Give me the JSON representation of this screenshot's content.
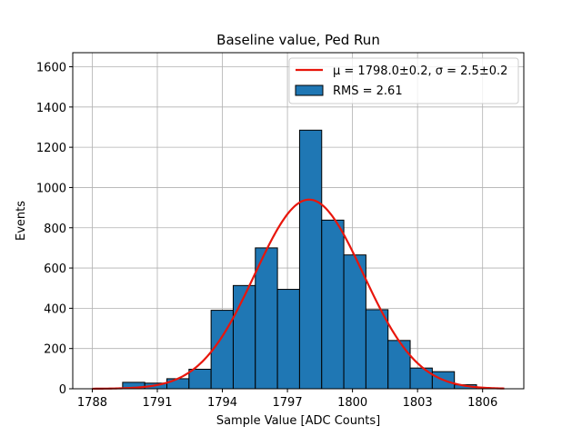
{
  "chart_data": {
    "type": "bar",
    "title": "Baseline value, Ped Run",
    "xlabel": "Sample Value [ADC Counts]",
    "ylabel": "Events",
    "xlim": [
      1787.1,
      1807.9
    ],
    "ylim": [
      0,
      1670
    ],
    "xticks": [
      1788,
      1791,
      1794,
      1797,
      1800,
      1803,
      1806
    ],
    "yticks": [
      0,
      200,
      400,
      600,
      800,
      1000,
      1200,
      1400,
      1600
    ],
    "grid": true,
    "legend_position": "top-right",
    "colors": {
      "bars": "#1f77b4",
      "bar_edge": "#000000",
      "fit_line": "#e8160c",
      "grid": "#b0b0b0"
    },
    "bins": {
      "edges": [
        1789.4,
        1790.42,
        1791.44,
        1792.46,
        1793.48,
        1794.5,
        1795.52,
        1796.54,
        1797.56,
        1798.58,
        1799.6,
        1800.62,
        1801.64,
        1802.66,
        1803.68,
        1804.7,
        1805.72
      ],
      "counts": [
        32,
        28,
        50,
        97,
        390,
        513,
        700,
        494,
        1285,
        838,
        665,
        393,
        240,
        103,
        85,
        20
      ]
    },
    "series": [
      {
        "name": "μ = 1798.0±0.2, σ = 2.5±0.2",
        "kind": "gaussian-fit",
        "mu": 1798.0,
        "sigma": 2.5,
        "amplitude": 940,
        "x_range": [
          1788,
          1807
        ]
      },
      {
        "name": "RMS = 2.61",
        "kind": "histogram"
      }
    ]
  }
}
